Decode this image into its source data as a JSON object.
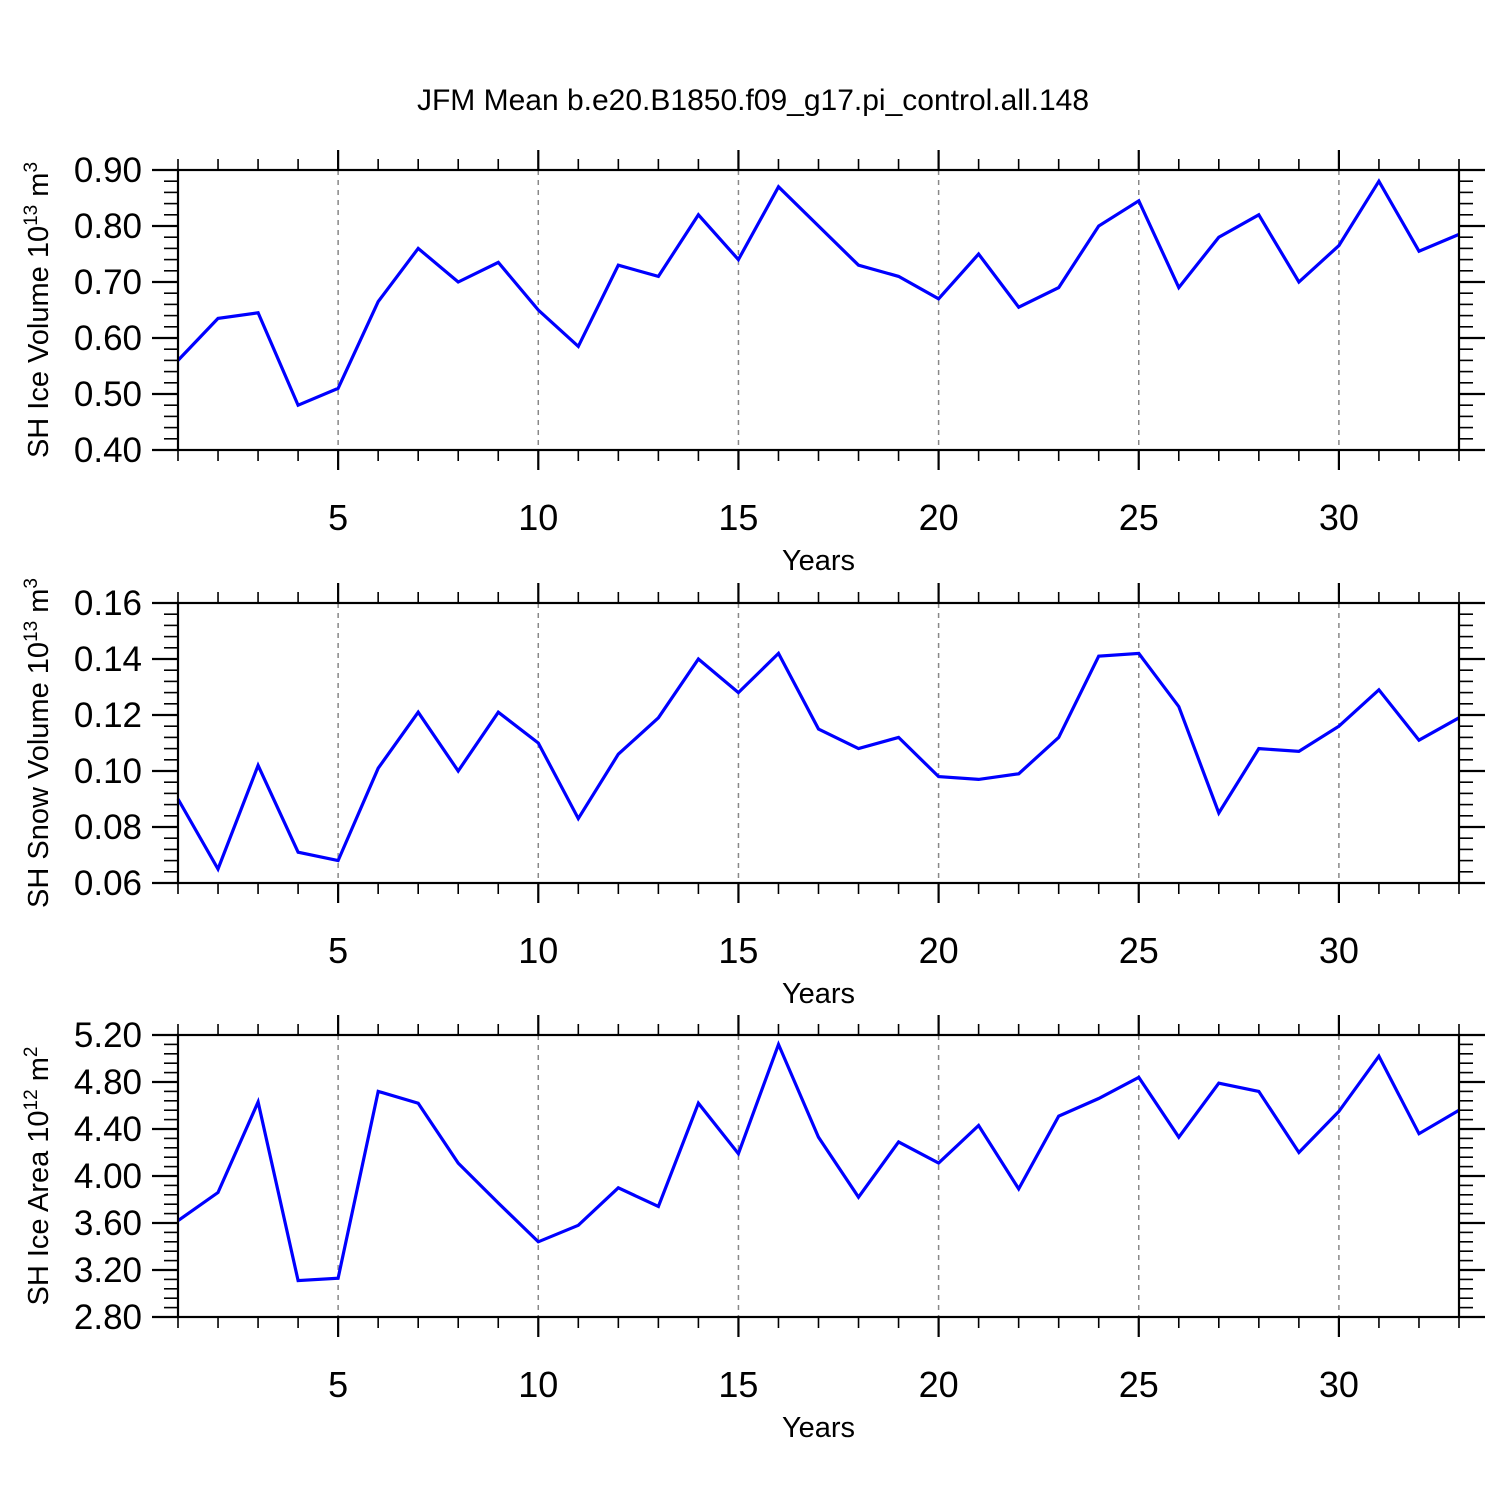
{
  "title": "JFM Mean b.e20.B1850.f09_g17.pi_control.all.148",
  "line_color": "#0000ff",
  "grid_color": "#888888",
  "axis_color": "#000000",
  "chart_data": [
    {
      "type": "line",
      "ylabel": "SH Ice Volume 10^{13} m^{3}",
      "xlabel": "Years",
      "x": [
        1,
        2,
        3,
        4,
        5,
        6,
        7,
        8,
        9,
        10,
        11,
        12,
        13,
        14,
        15,
        16,
        17,
        18,
        19,
        20,
        21,
        22,
        23,
        24,
        25,
        26,
        27,
        28,
        29,
        30,
        31,
        32,
        33
      ],
      "values": [
        0.56,
        0.635,
        0.645,
        0.48,
        0.51,
        0.665,
        0.76,
        0.7,
        0.735,
        0.65,
        0.585,
        0.73,
        0.71,
        0.82,
        0.74,
        0.87,
        0.8,
        0.73,
        0.71,
        0.67,
        0.75,
        0.655,
        0.69,
        0.8,
        0.845,
        0.69,
        0.78,
        0.82,
        0.7,
        0.765,
        0.88,
        0.755,
        0.785
      ],
      "ylim": [
        0.4,
        0.9
      ],
      "xlim": [
        1,
        33
      ],
      "yticks": [
        0.4,
        0.5,
        0.6,
        0.7,
        0.8,
        0.9
      ],
      "ytick_labels": [
        "0.40",
        "0.50",
        "0.60",
        "0.70",
        "0.80",
        "0.90"
      ],
      "yminor_step": 0.02,
      "xticks": [
        5,
        10,
        15,
        20,
        25,
        30
      ],
      "xtick_labels": [
        "5",
        "10",
        "15",
        "20",
        "25",
        "30"
      ],
      "xminor_step": 1,
      "grid": {
        "vertical_at": [
          5,
          10,
          15,
          20,
          25,
          30
        ],
        "style": "dashed"
      },
      "legend": "none"
    },
    {
      "type": "line",
      "ylabel": "SH Snow Volume 10^{13} m^{3}",
      "xlabel": "Years",
      "x": [
        1,
        2,
        3,
        4,
        5,
        6,
        7,
        8,
        9,
        10,
        11,
        12,
        13,
        14,
        15,
        16,
        17,
        18,
        19,
        20,
        21,
        22,
        23,
        24,
        25,
        26,
        27,
        28,
        29,
        30,
        31,
        32,
        33
      ],
      "values": [
        0.09,
        0.065,
        0.102,
        0.071,
        0.068,
        0.101,
        0.121,
        0.1,
        0.121,
        0.11,
        0.083,
        0.106,
        0.119,
        0.14,
        0.128,
        0.142,
        0.115,
        0.108,
        0.112,
        0.098,
        0.097,
        0.099,
        0.112,
        0.141,
        0.142,
        0.123,
        0.085,
        0.108,
        0.107,
        0.116,
        0.129,
        0.111,
        0.119
      ],
      "ylim": [
        0.06,
        0.16
      ],
      "xlim": [
        1,
        33
      ],
      "yticks": [
        0.06,
        0.08,
        0.1,
        0.12,
        0.14,
        0.16
      ],
      "ytick_labels": [
        "0.06",
        "0.08",
        "0.10",
        "0.12",
        "0.14",
        "0.16"
      ],
      "yminor_step": 0.004,
      "xticks": [
        5,
        10,
        15,
        20,
        25,
        30
      ],
      "xtick_labels": [
        "5",
        "10",
        "15",
        "20",
        "25",
        "30"
      ],
      "xminor_step": 1,
      "grid": {
        "vertical_at": [
          5,
          10,
          15,
          20,
          25,
          30
        ],
        "style": "dashed"
      },
      "legend": "none"
    },
    {
      "type": "line",
      "ylabel": "SH Ice Area 10^{12} m^{2}",
      "xlabel": "Years",
      "x": [
        1,
        2,
        3,
        4,
        5,
        6,
        7,
        8,
        9,
        10,
        11,
        12,
        13,
        14,
        15,
        16,
        17,
        18,
        19,
        20,
        21,
        22,
        23,
        24,
        25,
        26,
        27,
        28,
        29,
        30,
        31,
        32,
        33
      ],
      "values": [
        3.62,
        3.86,
        4.63,
        3.11,
        3.13,
        4.72,
        4.62,
        4.11,
        3.77,
        3.44,
        3.58,
        3.9,
        3.74,
        4.62,
        4.19,
        5.12,
        4.33,
        3.82,
        4.29,
        4.11,
        4.43,
        3.89,
        4.51,
        4.66,
        4.84,
        4.33,
        4.79,
        4.72,
        4.2,
        4.55,
        5.02,
        4.36,
        4.56
      ],
      "ylim": [
        2.8,
        5.2
      ],
      "xlim": [
        1,
        33
      ],
      "yticks": [
        2.8,
        3.2,
        3.6,
        4.0,
        4.4,
        4.8,
        5.2
      ],
      "ytick_labels": [
        "2.80",
        "3.20",
        "3.60",
        "4.00",
        "4.40",
        "4.80",
        "5.20"
      ],
      "yminor_step": 0.08,
      "xticks": [
        5,
        10,
        15,
        20,
        25,
        30
      ],
      "xtick_labels": [
        "5",
        "10",
        "15",
        "20",
        "25",
        "30"
      ],
      "xminor_step": 1,
      "grid": {
        "vertical_at": [
          5,
          10,
          15,
          20,
          25,
          30
        ],
        "style": "dashed"
      },
      "legend": "none"
    }
  ]
}
